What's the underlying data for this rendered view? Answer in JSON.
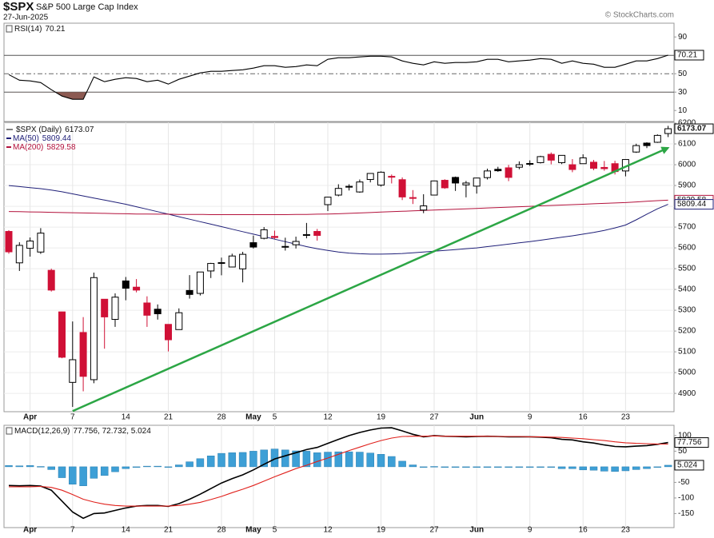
{
  "chart_data": [
    {
      "type": "candlestick",
      "title": "$SPX",
      "subtitle": "S&P 500 Large Cap Index",
      "date": "27-Jun-2025",
      "credit": "© StockCharts.com",
      "name": "$SPX (Daily)",
      "x": [
        "03-28",
        "03-31",
        "04-01",
        "04-02",
        "04-03",
        "04-04",
        "04-07",
        "04-08",
        "04-09",
        "04-10",
        "04-11",
        "04-14",
        "04-15",
        "04-16",
        "04-17",
        "04-21",
        "04-22",
        "04-23",
        "04-24",
        "04-25",
        "04-28",
        "04-29",
        "04-30",
        "05-01",
        "05-02",
        "05-05",
        "05-06",
        "05-07",
        "05-08",
        "05-09",
        "05-12",
        "05-13",
        "05-14",
        "05-15",
        "05-16",
        "05-19",
        "05-20",
        "05-21",
        "05-22",
        "05-23",
        "05-27",
        "05-28",
        "05-29",
        "05-30",
        "06-02",
        "06-03",
        "06-04",
        "06-05",
        "06-06",
        "06-09",
        "06-10",
        "06-11",
        "06-12",
        "06-13",
        "06-16",
        "06-17",
        "06-18",
        "06-20",
        "06-23",
        "06-24",
        "06-25",
        "06-26",
        "06-27"
      ],
      "open": [
        5679,
        5528,
        5598,
        5580,
        5492,
        5292,
        4953,
        5193,
        4966,
        5353,
        5256,
        5441,
        5411,
        5335,
        5305,
        5232,
        5207,
        5395,
        5381,
        5489,
        5529,
        5508,
        5499,
        5625,
        5646,
        5655,
        5605,
        5615,
        5660,
        5679,
        5808,
        5854,
        5896,
        5869,
        5929,
        5902,
        5944,
        5928,
        5842,
        5782,
        5854,
        5925,
        5939,
        5903,
        5897,
        5938,
        5978,
        5985,
        5988,
        6005,
        6010,
        6050,
        6010,
        6000,
        6005,
        6012,
        5987,
        6005,
        5970,
        6061,
        6104,
        6108,
        6150
      ],
      "high": [
        5685,
        5627,
        5650,
        5695,
        5500,
        5293,
        5246,
        5267,
        5481,
        5353,
        5381,
        5460,
        5450,
        5367,
        5328,
        5232,
        5309,
        5469,
        5485,
        5528,
        5553,
        5572,
        5581,
        5659,
        5700,
        5683,
        5649,
        5654,
        5720,
        5691,
        5845,
        5906,
        5906,
        5929,
        5958,
        5968,
        5953,
        5939,
        5878,
        5858,
        5924,
        5930,
        5943,
        5922,
        5937,
        5981,
        5990,
        5999,
        6016,
        6021,
        6043,
        6059,
        6045,
        6027,
        6050,
        6023,
        6018,
        6019,
        6025,
        6101,
        6108,
        6146,
        6187
      ],
      "low": [
        5572,
        5489,
        5558,
        5571,
        5390,
        5069,
        4835,
        4910,
        4949,
        5115,
        5220,
        5348,
        5386,
        5220,
        5255,
        5102,
        5207,
        5356,
        5371,
        5455,
        5468,
        5506,
        5434,
        5597,
        5641,
        5643,
        5587,
        5597,
        5646,
        5635,
        5777,
        5848,
        5876,
        5865,
        5915,
        5895,
        5910,
        5830,
        5811,
        5767,
        5854,
        5884,
        5874,
        5843,
        5861,
        5929,
        5966,
        5921,
        5978,
        5994,
        6006,
        6002,
        6003,
        5964,
        6005,
        5974,
        5971,
        5953,
        5944,
        6057,
        6080,
        6105,
        6133
      ],
      "close": [
        5581,
        5612,
        5633,
        5671,
        5397,
        5074,
        5062,
        4982,
        5457,
        5268,
        5363,
        5406,
        5397,
        5276,
        5283,
        5158,
        5288,
        5376,
        5484,
        5525,
        5528,
        5561,
        5569,
        5604,
        5687,
        5650,
        5607,
        5631,
        5664,
        5660,
        5844,
        5886,
        5892,
        5917,
        5958,
        5964,
        5940,
        5845,
        5842,
        5802,
        5922,
        5889,
        5912,
        5912,
        5936,
        5970,
        5971,
        5939,
        6000,
        6006,
        6039,
        6022,
        6045,
        5977,
        6033,
        5983,
        5981,
        5967,
        6025,
        6092,
        6092,
        6141,
        6173.07
      ],
      "colors": {
        "up": "#ffffff",
        "down": "#d01036",
        "flat": "#000000"
      },
      "series": [
        {
          "name": "MA(50)",
          "color": "#1f1f78",
          "values": [
            5900,
            5895,
            5890,
            5885,
            5878,
            5870,
            5860,
            5850,
            5840,
            5830,
            5820,
            5810,
            5798,
            5786,
            5774,
            5762,
            5750,
            5738,
            5726,
            5714,
            5702,
            5690,
            5678,
            5666,
            5654,
            5642,
            5630,
            5618,
            5606,
            5596,
            5588,
            5580,
            5575,
            5572,
            5570,
            5570,
            5571,
            5573,
            5576,
            5580,
            5584,
            5588,
            5592,
            5596,
            5600,
            5606,
            5612,
            5618,
            5624,
            5630,
            5637,
            5644,
            5651,
            5658,
            5666,
            5674,
            5684,
            5696,
            5710,
            5735,
            5762,
            5788,
            5809.44
          ]
        },
        {
          "name": "MA(200)",
          "color": "#b3123c",
          "values": [
            5775,
            5774,
            5773,
            5772,
            5771,
            5770,
            5769,
            5768,
            5767,
            5766,
            5765,
            5764,
            5763,
            5763,
            5762,
            5762,
            5761,
            5761,
            5761,
            5760,
            5760,
            5760,
            5760,
            5760,
            5760,
            5760,
            5760,
            5761,
            5761,
            5762,
            5763,
            5764,
            5766,
            5768,
            5770,
            5772,
            5774,
            5776,
            5778,
            5780,
            5782,
            5784,
            5786,
            5788,
            5790,
            5792,
            5794,
            5796,
            5798,
            5800,
            5802,
            5804,
            5806,
            5808,
            5810,
            5812,
            5814,
            5816,
            5818,
            5821,
            5824,
            5827,
            5829.58
          ]
        }
      ],
      "trendline": {
        "x": [
          "04-07",
          "06-27"
        ],
        "values": [
          4815,
          6081
        ],
        "color": "#2ca645"
      },
      "ylim": [
        4812,
        6204
      ],
      "yticks": [
        4900,
        5000,
        5100,
        5200,
        5300,
        5400,
        5500,
        5600,
        5700,
        5800,
        5900,
        6000,
        6100,
        6200
      ],
      "xticks": [
        {
          "value": "04-01",
          "label": "Apr"
        },
        {
          "value": "04-07",
          "label": "7"
        },
        {
          "value": "04-14",
          "label": "14"
        },
        {
          "value": "04-21",
          "label": "21"
        },
        {
          "value": "04-28",
          "label": "28"
        },
        {
          "value": "05-01",
          "label": "May"
        },
        {
          "value": "05-05",
          "label": "5"
        },
        {
          "value": "05-12",
          "label": "12"
        },
        {
          "value": "05-19",
          "label": "19"
        },
        {
          "value": "05-27",
          "label": "27"
        },
        {
          "value": "06-02",
          "label": "Jun"
        },
        {
          "value": "06-09",
          "label": "9"
        },
        {
          "value": "06-16",
          "label": "16"
        },
        {
          "value": "06-23",
          "label": "23"
        }
      ],
      "grid": true
    },
    {
      "type": "line",
      "series": [
        {
          "name": "RSI(14)",
          "color": "#000000",
          "values": [
            49.1,
            43,
            42.2,
            40.4,
            32.6,
            25.7,
            22.2,
            22.2,
            46.5,
            41.3,
            43.9,
            45.7,
            44.8,
            41.3,
            43,
            38.7,
            43.9,
            47.4,
            50.9,
            52.6,
            52.6,
            53.5,
            54.3,
            56.1,
            58.7,
            58.7,
            57,
            57.8,
            59.6,
            58.7,
            65.7,
            67.4,
            67.4,
            68.3,
            69.1,
            69.1,
            68.3,
            63.9,
            61.3,
            59.6,
            63,
            61.3,
            62.2,
            62.2,
            63,
            65.7,
            65.7,
            63,
            63.9,
            64.8,
            66.5,
            65.7,
            61.3,
            63.9,
            61.3,
            60.4,
            57,
            57,
            60.4,
            63.9,
            63.9,
            66.5,
            70.21
          ]
        }
      ],
      "ylim": [
        -2,
        105
      ],
      "yticks": [
        10,
        30,
        50,
        70,
        90
      ],
      "reference_lines": [
        30,
        50,
        70
      ],
      "oversold_fill": "#8c5a52"
    },
    {
      "type": "line",
      "name": "MACD(12,26,9)",
      "value_separator": ", ",
      "series": [
        {
          "color": "#000000",
          "values": [
            -60,
            -61,
            -60,
            -62,
            -75,
            -110,
            -145,
            -165,
            -150,
            -148,
            -140,
            -132,
            -126,
            -124,
            -124,
            -127,
            -118,
            -104,
            -88,
            -70,
            -52,
            -38,
            -26,
            -10,
            8,
            25,
            35,
            45,
            55,
            62,
            75,
            88,
            100,
            110,
            118,
            124,
            125,
            115,
            104,
            96,
            100,
            98,
            97,
            96,
            97,
            98,
            97,
            96,
            96,
            96,
            95,
            93,
            88,
            86,
            80,
            76,
            70,
            65,
            64,
            66,
            68,
            72,
            77.756
          ]
        },
        {
          "color": "#e0201b",
          "values": [
            -64,
            -64,
            -64,
            -63,
            -66,
            -75,
            -89,
            -104,
            -113,
            -120,
            -124,
            -126,
            -126,
            -126,
            -126,
            -126,
            -124,
            -120,
            -114,
            -105,
            -95,
            -83,
            -72,
            -60,
            -46,
            -32,
            -19,
            -6,
            5,
            17,
            28,
            40,
            52,
            63,
            74,
            84,
            92,
            97,
            98,
            98,
            99,
            98,
            98,
            98,
            98,
            98,
            97,
            97,
            97,
            96,
            96,
            95,
            94,
            92,
            90,
            87,
            84,
            80,
            77,
            75,
            74,
            73,
            72.732
          ]
        },
        {
          "type": "bar",
          "color": "#3d9fd6",
          "values": [
            4,
            3,
            4,
            1,
            -9,
            -35,
            -56,
            -61,
            -37,
            -28,
            -16,
            -6,
            0,
            2,
            2,
            -1,
            6,
            16,
            26,
            35,
            43,
            45,
            46,
            50,
            54,
            57,
            54,
            51,
            50,
            45,
            47,
            48,
            48,
            47,
            44,
            40,
            33,
            18,
            6,
            -2,
            1,
            0,
            -1,
            -2,
            -1,
            0,
            0,
            -1,
            -1,
            0,
            -1,
            -2,
            -6,
            -6,
            -10,
            -11,
            -14,
            -15,
            -13,
            -9,
            -6,
            -1,
            5.024
          ]
        }
      ],
      "ylim": [
        -195,
        133
      ],
      "yticks": [
        -150,
        -100,
        -50,
        50,
        100
      ]
    }
  ]
}
